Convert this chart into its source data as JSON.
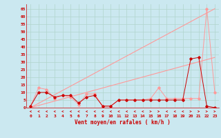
{
  "x": [
    0,
    1,
    2,
    3,
    4,
    5,
    6,
    7,
    8,
    9,
    10,
    11,
    12,
    13,
    14,
    15,
    16,
    17,
    18,
    19,
    20,
    21,
    22,
    23
  ],
  "rafales_line": [
    1,
    13,
    12,
    6,
    8,
    7,
    2,
    9,
    9,
    1,
    1,
    5,
    5,
    5,
    5,
    6,
    13,
    6,
    6,
    6,
    6,
    6,
    65,
    10
  ],
  "moyen_line": [
    1,
    10,
    10,
    7,
    8,
    8,
    3,
    7,
    8,
    1,
    1,
    5,
    5,
    5,
    5,
    5,
    5,
    5,
    5,
    5,
    32,
    33,
    1,
    0
  ],
  "linear_rafales": [
    0,
    2.83,
    5.65,
    8.48,
    11.3,
    14.13,
    16.96,
    19.78,
    22.61,
    25.43,
    28.26,
    31.09,
    33.91,
    36.74,
    39.57,
    42.39,
    45.22,
    48.04,
    50.87,
    53.7,
    56.52,
    59.35,
    62.17,
    65.0
  ],
  "linear_moyen": [
    0,
    1.43,
    2.87,
    4.3,
    5.74,
    7.17,
    8.61,
    10.04,
    11.48,
    12.91,
    14.35,
    15.78,
    17.22,
    18.65,
    20.09,
    21.52,
    22.96,
    24.39,
    25.83,
    27.26,
    28.7,
    30.13,
    31.57,
    33.0
  ],
  "bg_color": "#cbe8f0",
  "grid_color": "#b0d4cc",
  "line_color_dark": "#cc0000",
  "line_color_light": "#ff9999",
  "xlabel": "Vent moyen/en rafales ( km/h )",
  "xlim": [
    -0.5,
    23.5
  ],
  "ylim": [
    -5,
    68
  ],
  "plot_ylim": [
    0,
    68
  ],
  "yticks": [
    0,
    5,
    10,
    15,
    20,
    25,
    30,
    35,
    40,
    45,
    50,
    55,
    60,
    65
  ],
  "xticks": [
    0,
    1,
    2,
    3,
    4,
    5,
    6,
    7,
    8,
    9,
    10,
    11,
    12,
    13,
    14,
    15,
    16,
    17,
    18,
    19,
    20,
    21,
    22,
    23
  ],
  "wind_directions": [
    180,
    180,
    180,
    180,
    180,
    180,
    180,
    180,
    180,
    180,
    180,
    180,
    180,
    180,
    180,
    0,
    0,
    180,
    180,
    180,
    0,
    0,
    0,
    0
  ]
}
